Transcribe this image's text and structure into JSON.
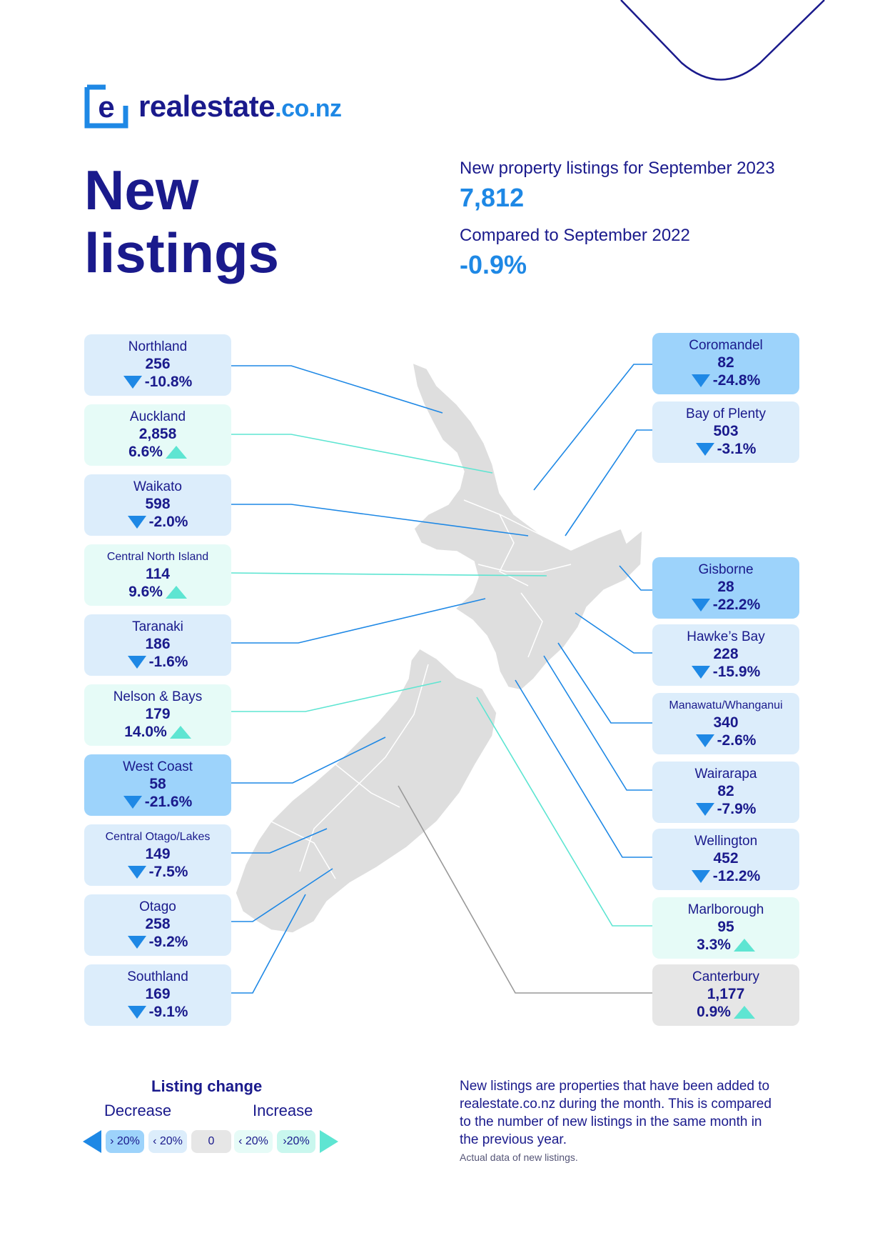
{
  "brand": {
    "name": "realestate",
    "tld": ".co.nz"
  },
  "title": {
    "line1": "New",
    "line2": "listings"
  },
  "stats": {
    "listings_label": "New property listings for September 2023",
    "listings_value": "7,812",
    "compare_label": "Compared to September 2022",
    "compare_value": "-0.9%"
  },
  "colors": {
    "navy": "#1a1a8c",
    "blue": "#1e88e5",
    "decrease_over_20": "#9dd3fb",
    "decrease": "#dcedfb",
    "increase": "#e6fbf7",
    "neutral": "#e6e6e6",
    "increase_arrow": "#5ee5d2",
    "map": "#dedede"
  },
  "regions": {
    "northland": {
      "name": "Northland",
      "count": "256",
      "change": "-10.8%",
      "direction": "down",
      "band": "decrease"
    },
    "auckland": {
      "name": "Auckland",
      "count": "2,858",
      "change": "6.6%",
      "direction": "up",
      "band": "increase"
    },
    "waikato": {
      "name": "Waikato",
      "count": "598",
      "change": "-2.0%",
      "direction": "down",
      "band": "decrease"
    },
    "central_north_island": {
      "name": "Central North Island",
      "count": "114",
      "change": "9.6%",
      "direction": "up",
      "band": "increase"
    },
    "taranaki": {
      "name": "Taranaki",
      "count": "186",
      "change": "-1.6%",
      "direction": "down",
      "band": "decrease"
    },
    "nelson": {
      "name": "Nelson & Bays",
      "count": "179",
      "change": "14.0%",
      "direction": "up",
      "band": "increase"
    },
    "west_coast": {
      "name": "West Coast",
      "count": "58",
      "change": "-21.6%",
      "direction": "down",
      "band": "decrease_over_20"
    },
    "central_otago": {
      "name": "Central Otago/Lakes",
      "count": "149",
      "change": "-7.5%",
      "direction": "down",
      "band": "decrease"
    },
    "otago": {
      "name": "Otago",
      "count": "258",
      "change": "-9.2%",
      "direction": "down",
      "band": "decrease"
    },
    "southland": {
      "name": "Southland",
      "count": "169",
      "change": "-9.1%",
      "direction": "down",
      "band": "decrease"
    },
    "coromandel": {
      "name": "Coromandel",
      "count": "82",
      "change": "-24.8%",
      "direction": "down",
      "band": "decrease_over_20"
    },
    "bay_of_plenty": {
      "name": "Bay of Plenty",
      "count": "503",
      "change": "-3.1%",
      "direction": "down",
      "band": "decrease"
    },
    "gisborne": {
      "name": "Gisborne",
      "count": "28",
      "change": "-22.2%",
      "direction": "down",
      "band": "decrease_over_20"
    },
    "hawkes_bay": {
      "name": "Hawke’s Bay",
      "count": "228",
      "change": "-15.9%",
      "direction": "down",
      "band": "decrease"
    },
    "manawatu": {
      "name": "Manawatu/Whanganui",
      "count": "340",
      "change": "-2.6%",
      "direction": "down",
      "band": "decrease"
    },
    "wairarapa": {
      "name": "Wairarapa",
      "count": "82",
      "change": "-7.9%",
      "direction": "down",
      "band": "decrease"
    },
    "wellington": {
      "name": "Wellington",
      "count": "452",
      "change": "-12.2%",
      "direction": "down",
      "band": "decrease"
    },
    "marlborough": {
      "name": "Marlborough",
      "count": "95",
      "change": "3.3%",
      "direction": "up",
      "band": "increase"
    },
    "canterbury": {
      "name": "Canterbury",
      "count": "1,177",
      "change": "0.9%",
      "direction": "up",
      "band": "neutral"
    }
  },
  "legend": {
    "title": "Listing change",
    "decrease_label": "Decrease",
    "increase_label": "Increase",
    "pills": [
      "› 20%",
      "‹ 20%",
      "0",
      "‹ 20%",
      "›20%"
    ]
  },
  "footnote": {
    "text": "New listings are properties that have been added to realestate.co.nz during the month. This is compared to the number of new listings in the same month in the previous year.",
    "small": "Actual data of new listings."
  }
}
